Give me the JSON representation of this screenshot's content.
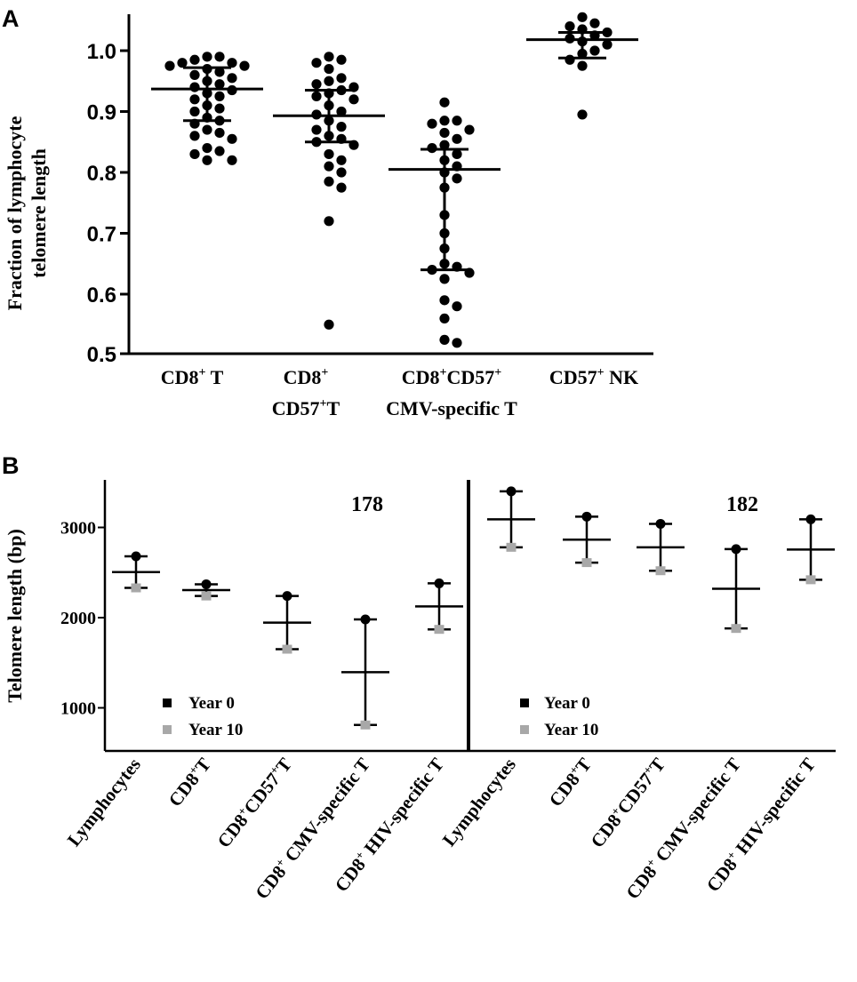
{
  "panel_a_letter": "A",
  "panel_b_letter": "B",
  "chart_data": [
    {
      "type": "scatter",
      "panel": "A",
      "ylabel_line1": "Fraction of lymphocyte",
      "ylabel_line2": "telomere length",
      "ylim": [
        0.5,
        1.05
      ],
      "yticks": [
        "0.5",
        "0.6",
        "0.7",
        "0.8",
        "0.9",
        "1.0"
      ],
      "ytick_values": [
        0.5,
        0.6,
        0.7,
        0.8,
        0.9,
        1.0
      ],
      "categories": [
        {
          "line1": "CD8",
          "sup1": "+",
          "rest1": " T",
          "line2": "",
          "sup2": "",
          "rest2": ""
        },
        {
          "line1": "CD8",
          "sup1": "+",
          "rest1": "",
          "line2": "CD57",
          "sup2": "+",
          "rest2": "T"
        },
        {
          "line1": "CD8",
          "sup1": "+",
          "rest1": "CD57",
          "sup1b": "+",
          "line2": "CMV-specific T",
          "sup2": "",
          "rest2": ""
        },
        {
          "line1": "CD57",
          "sup1": "+",
          "rest1": " NK",
          "line2": "",
          "sup2": "",
          "rest2": ""
        }
      ],
      "groups": [
        {
          "name": "CD8+ T",
          "median": 0.937,
          "q1": 0.885,
          "q3": 0.972,
          "points": [
            0.99,
            0.99,
            0.985,
            0.98,
            0.98,
            0.975,
            0.975,
            0.97,
            0.965,
            0.96,
            0.955,
            0.95,
            0.945,
            0.94,
            0.935,
            0.93,
            0.925,
            0.92,
            0.91,
            0.905,
            0.9,
            0.89,
            0.885,
            0.88,
            0.87,
            0.865,
            0.86,
            0.855,
            0.84,
            0.835,
            0.83,
            0.82,
            0.82
          ]
        },
        {
          "name": "CD8+ CD57+ T",
          "median": 0.893,
          "q1": 0.85,
          "q3": 0.935,
          "points": [
            0.99,
            0.985,
            0.98,
            0.97,
            0.955,
            0.95,
            0.945,
            0.94,
            0.935,
            0.93,
            0.925,
            0.92,
            0.91,
            0.9,
            0.895,
            0.885,
            0.875,
            0.87,
            0.86,
            0.855,
            0.85,
            0.845,
            0.83,
            0.82,
            0.81,
            0.8,
            0.785,
            0.775,
            0.72,
            0.55
          ]
        },
        {
          "name": "CD8+CD57+ CMV-specific T",
          "median": 0.805,
          "q1": 0.64,
          "q3": 0.838,
          "points": [
            0.915,
            0.885,
            0.885,
            0.88,
            0.87,
            0.865,
            0.855,
            0.845,
            0.84,
            0.83,
            0.82,
            0.81,
            0.8,
            0.79,
            0.775,
            0.73,
            0.7,
            0.675,
            0.65,
            0.645,
            0.64,
            0.635,
            0.625,
            0.59,
            0.58,
            0.56,
            0.525,
            0.52
          ]
        },
        {
          "name": "CD57+ NK",
          "median": 1.018,
          "q1": 0.988,
          "q3": 1.03,
          "points": [
            1.055,
            1.045,
            1.04,
            1.035,
            1.03,
            1.025,
            1.02,
            1.015,
            1.01,
            1.0,
            0.995,
            0.985,
            0.975,
            0.895
          ]
        }
      ]
    },
    {
      "type": "range",
      "panel": "B",
      "ylabel": "Telomere length (bp)",
      "ylim": [
        500,
        3500
      ],
      "yticks": [
        "1000",
        "2000",
        "3000"
      ],
      "ytick_values": [
        1000,
        2000,
        3000
      ],
      "legend": {
        "year0": "Year 0",
        "year10": "Year 10",
        "year0_color": "#000000",
        "year10_color": "#a8a8a8"
      },
      "subjects": [
        {
          "id": "178",
          "categories": [
            {
              "pre": "Lymphocytes",
              "name": "Lymphocytes",
              "year0": 2680,
              "year10": 2330,
              "mean": 2505
            },
            {
              "pre": "CD8",
              "sup": "+",
              "post": "T",
              "name": "CD8+T",
              "year0": 2370,
              "year10": 2240,
              "mean": 2305
            },
            {
              "pre": "CD8",
              "sup": "+",
              "mid": "CD57",
              "sup2": "+",
              "post": "T",
              "name": "CD8+CD57+T",
              "year0": 2240,
              "year10": 1650,
              "mean": 1945
            },
            {
              "pre": "CD8",
              "sup": "+",
              "post": " CMV-specific T",
              "name": "CD8+ CMV-specific T",
              "year0": 1980,
              "year10": 810,
              "mean": 1395
            },
            {
              "pre": "CD8",
              "sup": "+",
              "post": " HIV-specific T",
              "name": "CD8+ HIV-specific T",
              "year0": 2380,
              "year10": 1870,
              "mean": 2125
            }
          ]
        },
        {
          "id": "182",
          "categories": [
            {
              "pre": "Lymphocytes",
              "name": "Lymphocytes",
              "year0": 3400,
              "year10": 2780,
              "mean": 3090
            },
            {
              "pre": "CD8",
              "sup": "+",
              "post": "T",
              "name": "CD8+T",
              "year0": 3120,
              "year10": 2610,
              "mean": 2865
            },
            {
              "pre": "CD8",
              "sup": "+",
              "mid": "CD57",
              "sup2": "+",
              "post": "T",
              "name": "CD8+CD57+T",
              "year0": 3040,
              "year10": 2520,
              "mean": 2780
            },
            {
              "pre": "CD8",
              "sup": "+",
              "post": " CMV-specific T",
              "name": "CD8+ CMV-specific T",
              "year0": 2760,
              "year10": 1880,
              "mean": 2320
            },
            {
              "pre": "CD8",
              "sup": "+",
              "post": " HIV-specific T",
              "name": "CD8+ HIV-specific T",
              "year0": 3090,
              "year10": 2420,
              "mean": 2755
            }
          ]
        }
      ]
    }
  ]
}
